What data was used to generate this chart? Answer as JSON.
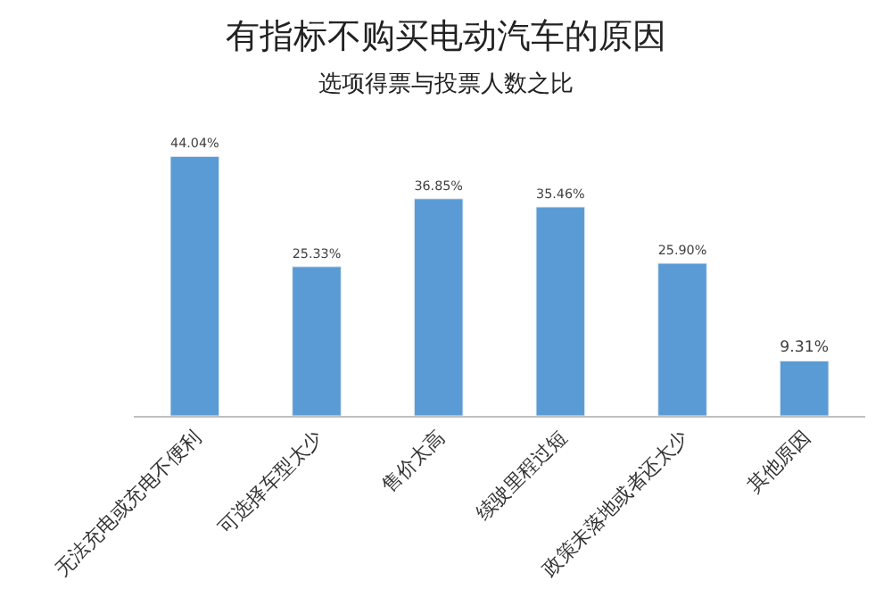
{
  "chart_data": {
    "type": "bar",
    "title": "有指标不购买电动汽车的原因",
    "subtitle": "选项得票与投票人数之比",
    "categories": [
      "无法充电或充电不便利",
      "可选择车型太少",
      "售价太高",
      "续驶里程过短",
      "政策未落地或者还太少",
      "其他原因"
    ],
    "values": [
      44.04,
      25.33,
      36.85,
      35.46,
      25.9,
      9.31
    ],
    "value_labels": [
      "44.04%",
      "25.33%",
      "36.85%",
      "35.46%",
      "25.90%",
      "9.31%"
    ],
    "color": "#5b9bd5"
  }
}
